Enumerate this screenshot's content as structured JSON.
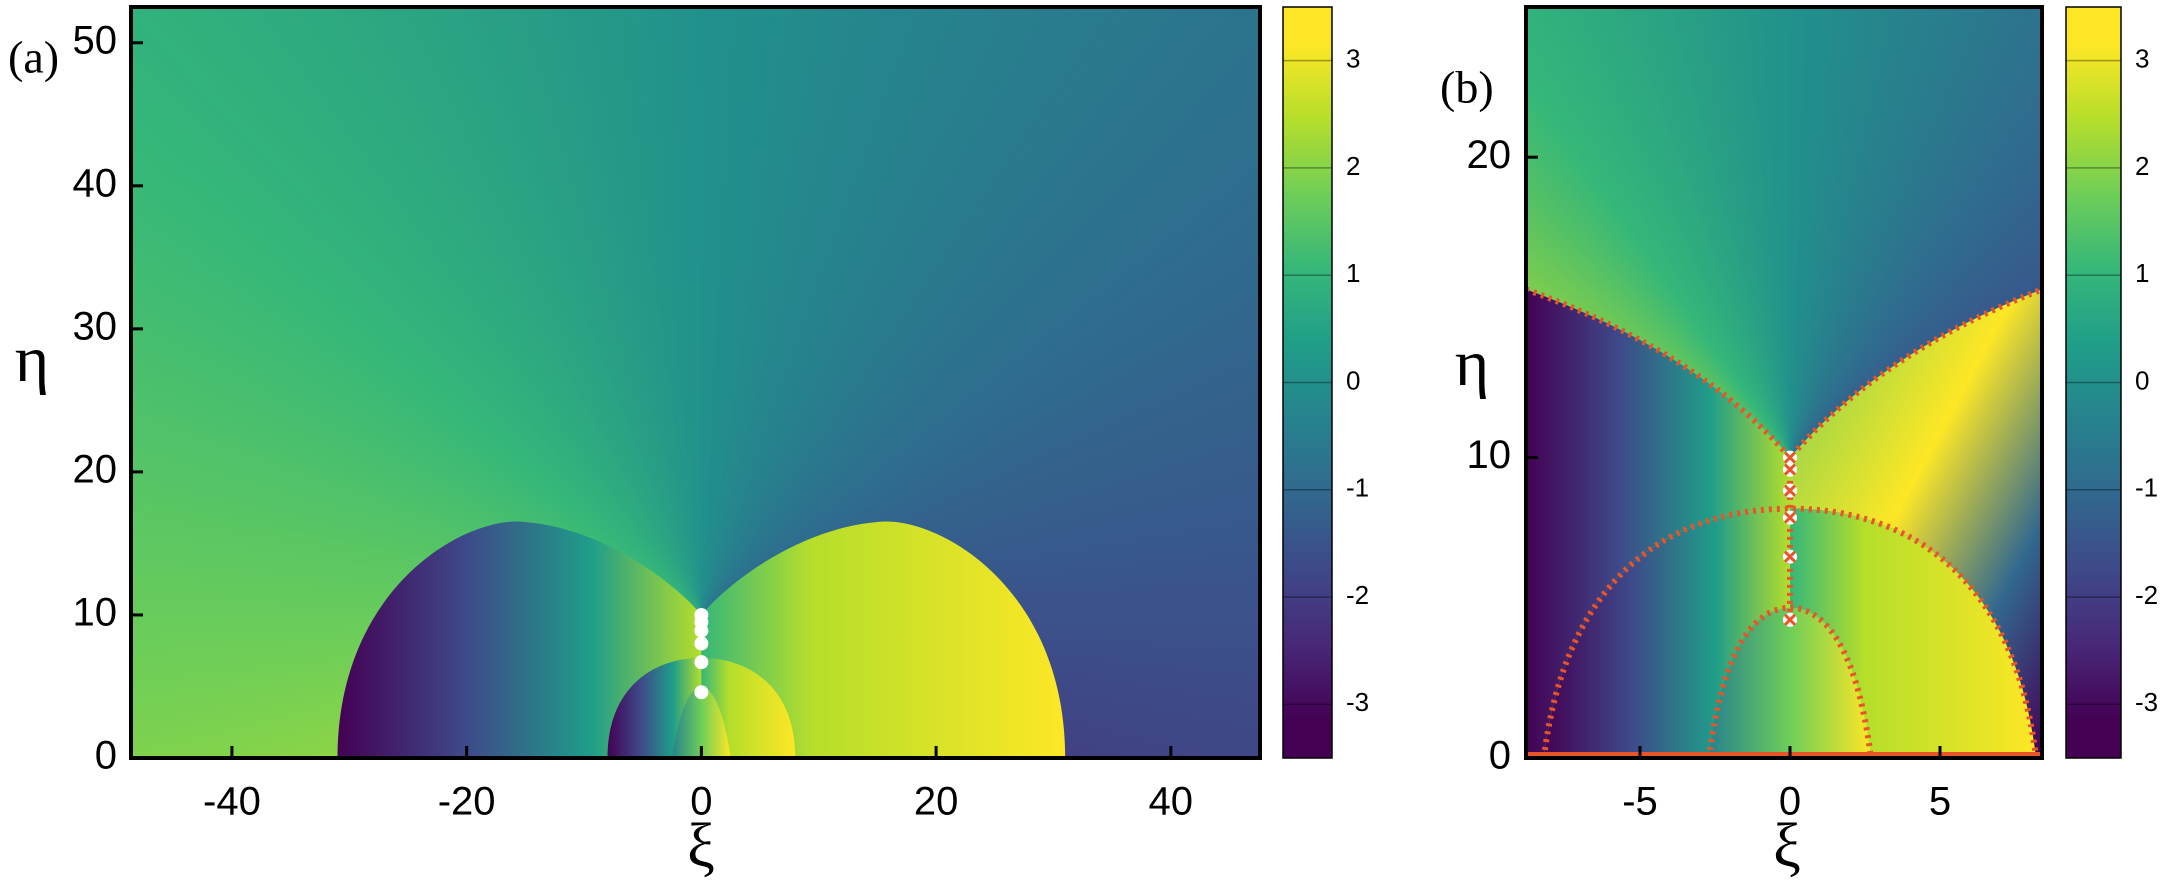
{
  "chart_data": [
    {
      "type": "heatmap",
      "panel_label": "(a)",
      "x_label": "ξ",
      "y_label": "η",
      "xlim": [
        -48.6,
        47.6
      ],
      "ylim": [
        0,
        52.5
      ],
      "xticks": [
        -40,
        -20,
        0,
        20,
        40
      ],
      "yticks": [
        0,
        10,
        20,
        30,
        40,
        50
      ],
      "points": {
        "x": [
          0,
          0,
          0,
          0,
          0,
          0
        ],
        "y": [
          4.6,
          6.7,
          8.0,
          8.9,
          9.5,
          10.0
        ],
        "color": "#ffffff"
      },
      "colorbar": {
        "clim": [
          -3.5,
          3.5
        ],
        "ticks": [
          -3,
          -2,
          -1,
          0,
          1,
          2,
          3
        ]
      }
    },
    {
      "type": "heatmap",
      "panel_label": "(b)",
      "x_label": "ξ",
      "y_label": "η",
      "xlim": [
        -8.8,
        8.4
      ],
      "ylim": [
        0,
        25
      ],
      "xticks": [
        -5,
        0,
        5
      ],
      "yticks": [
        0,
        10,
        20
      ],
      "points": {
        "x": [
          0,
          0,
          0,
          0,
          0,
          0
        ],
        "y": [
          4.6,
          6.7,
          8.0,
          8.9,
          9.6,
          10.0
        ],
        "color": "#ffffff"
      },
      "crosses": {
        "x": [
          0,
          0,
          0,
          0,
          0,
          0
        ],
        "y": [
          4.6,
          6.7,
          8.0,
          8.9,
          9.6,
          10.0
        ],
        "color": "#e8552a"
      },
      "colorbar": {
        "clim": [
          -3.5,
          3.5
        ],
        "ticks": [
          -3,
          -2,
          -1,
          0,
          1,
          2,
          3
        ]
      }
    }
  ]
}
